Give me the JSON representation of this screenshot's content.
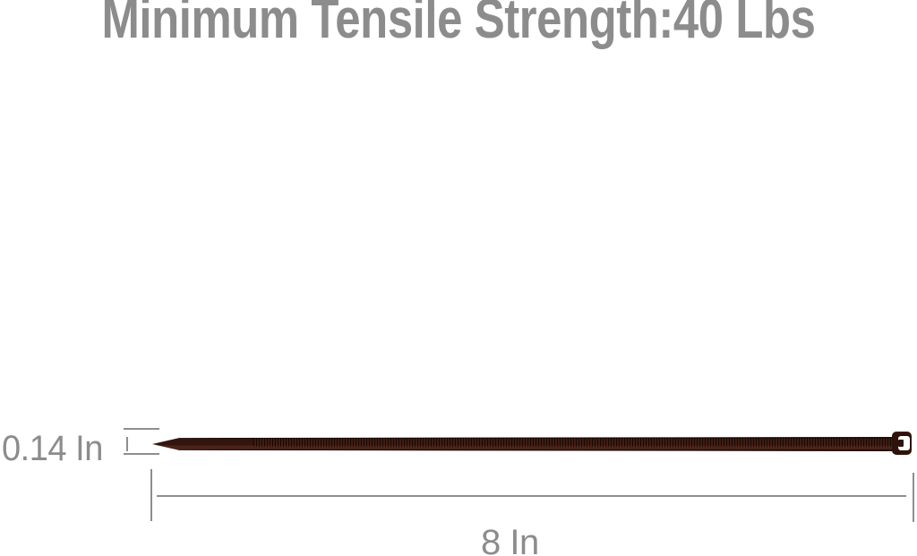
{
  "title": "Minimum Tensile Strength:40 Lbs",
  "annotations": {
    "thickness_label": "0.14 In",
    "length_label": "8 In"
  },
  "colors": {
    "background": "#ffffff",
    "label_gray": "#8c8c8c",
    "line_gray": "#8e8e8e",
    "tie_dark": "#2e130d",
    "tie_body": "#33150e",
    "tie_highlight": "#4a231a",
    "tie_edge": "#1e0d09",
    "slot_white": "#ffffff"
  }
}
